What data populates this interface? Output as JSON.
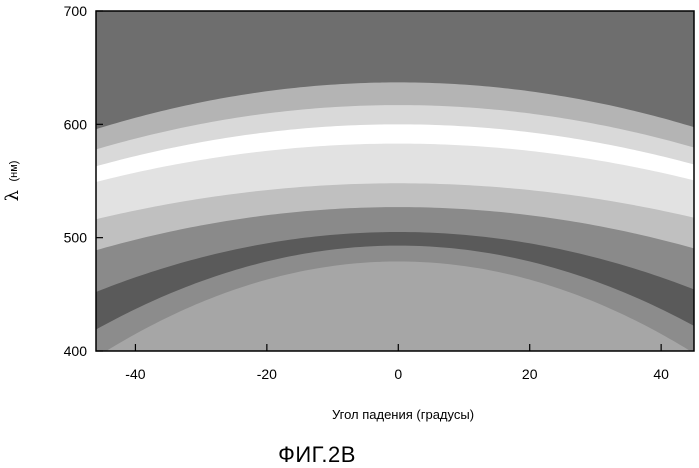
{
  "chart_data": {
    "type": "heatmap",
    "title": "",
    "caption": "ФИГ.2В",
    "xlabel": "Угол падения (градусы)",
    "ylabel_symbol": "λ",
    "ylabel_unit": "(нм)",
    "xlim": [
      -46,
      45
    ],
    "ylim": [
      400,
      700
    ],
    "xticks": [
      -40,
      -20,
      0,
      20,
      40
    ],
    "yticks": [
      400,
      500,
      600,
      700
    ],
    "grid": false,
    "bands": [
      {
        "name": "level-1",
        "color": "#6e6e6e",
        "above_peak": 637,
        "above_curv": 0.0195
      },
      {
        "name": "level-2",
        "color": "#b4b4b4",
        "above_peak": 617,
        "above_curv": 0.0185
      },
      {
        "name": "level-3",
        "color": "#d9d9d9",
        "above_peak": 600,
        "above_curv": 0.0175
      },
      {
        "name": "level-4",
        "color": "#ffffff",
        "above_peak": 583,
        "above_curv": 0.016
      },
      {
        "name": "level-5",
        "color": "#e2e2e2",
        "above_peak": 548,
        "above_curv": 0.015
      },
      {
        "name": "level-6",
        "color": "#c0c0c0",
        "above_peak": 527,
        "above_curv": 0.018
      },
      {
        "name": "level-7",
        "color": "#8a8a8a",
        "above_peak": 505,
        "above_curv": 0.025
      },
      {
        "name": "level-8",
        "color": "#5a5a5a",
        "above_peak": 493,
        "above_curv": 0.035
      },
      {
        "name": "level-9",
        "color": "#8c8c8c",
        "above_peak": 479,
        "above_curv": 0.04
      }
    ]
  }
}
